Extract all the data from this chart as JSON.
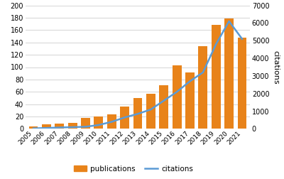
{
  "years": [
    "2005",
    "2006",
    "2007",
    "2008",
    "2009",
    "2010",
    "2011",
    "2012",
    "2013",
    "2014",
    "2015",
    "2016",
    "2017",
    "2018",
    "2019",
    "2020",
    "2021"
  ],
  "publications": [
    4,
    7,
    8,
    10,
    18,
    20,
    24,
    36,
    50,
    57,
    71,
    103,
    91,
    134,
    168,
    179,
    148
  ],
  "citations": [
    30,
    50,
    80,
    100,
    120,
    220,
    400,
    650,
    850,
    1100,
    1600,
    2100,
    2700,
    3200,
    4800,
    6100,
    5100
  ],
  "bar_color": "#E8831A",
  "line_color": "#5B9BD5",
  "left_ylim": [
    0,
    200
  ],
  "right_ylim": [
    0,
    7000
  ],
  "left_yticks": [
    0,
    20,
    40,
    60,
    80,
    100,
    120,
    140,
    160,
    180,
    200
  ],
  "right_yticks": [
    0,
    1000,
    2000,
    3000,
    4000,
    5000,
    6000,
    7000
  ],
  "legend_pub": "publications",
  "legend_cit": "citations",
  "right_ylabel": "citations",
  "background_color": "#ffffff",
  "grid_color": "#d9d9d9"
}
